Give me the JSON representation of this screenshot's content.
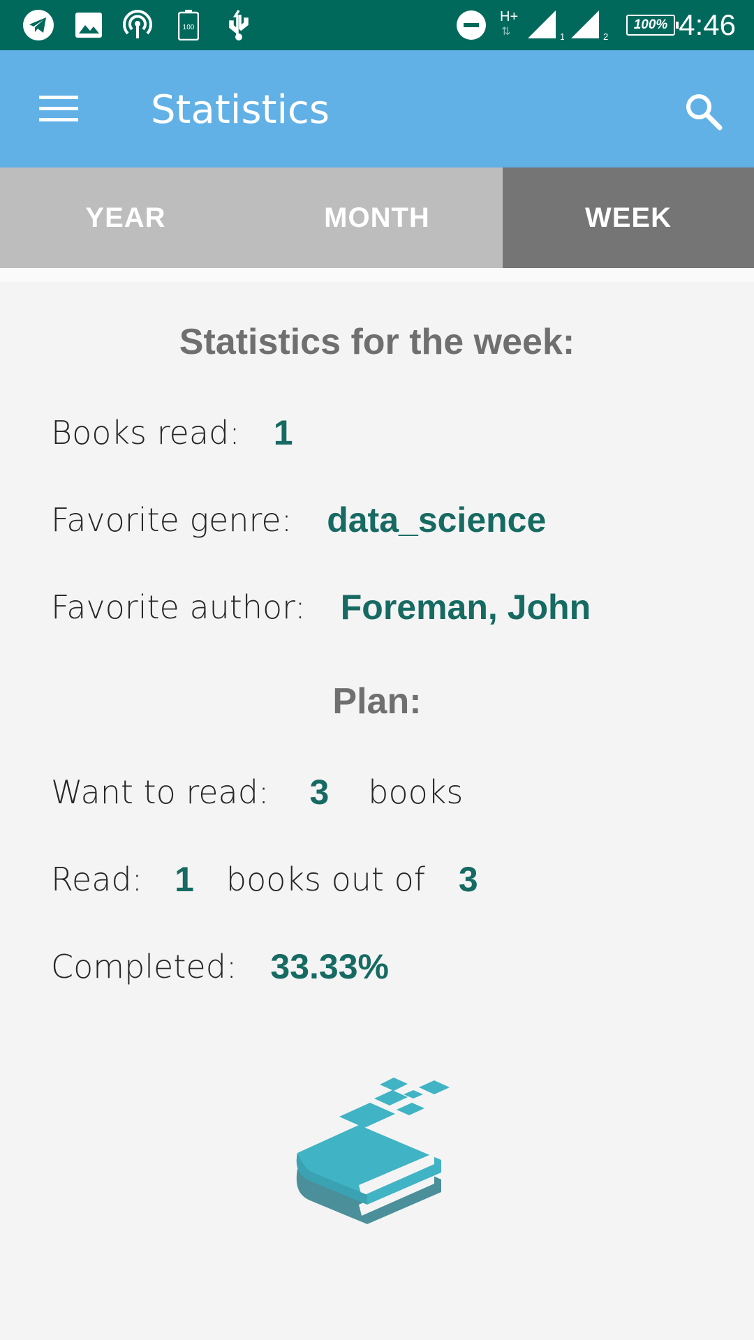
{
  "status_bar": {
    "time": "4:46",
    "battery_text": "100%",
    "network_text": "H+",
    "sim1": "1",
    "sim2": "2",
    "battery_icon_text": "100"
  },
  "app_bar": {
    "title": "Statistics"
  },
  "tabs": [
    {
      "label": "YEAR",
      "active": false
    },
    {
      "label": "MONTH",
      "active": false
    },
    {
      "label": "WEEK",
      "active": true
    }
  ],
  "stats": {
    "heading": "Statistics for the week:",
    "books_read_label": "Books read:",
    "books_read_value": "1",
    "favorite_genre_label": "Favorite genre:",
    "favorite_genre_value": "data_science",
    "favorite_author_label": "Favorite author:",
    "favorite_author_value": "Foreman, John"
  },
  "plan": {
    "heading": "Plan:",
    "want_to_read_label": "Want to read:",
    "want_to_read_value": "3",
    "want_to_read_unit": "books",
    "read_label": "Read:",
    "read_value": "1",
    "read_middle": "books out of",
    "read_total": "3",
    "completed_label": "Completed:",
    "completed_value": "33.33%"
  },
  "colors": {
    "status_bar": "#00695c",
    "app_bar": "#61b1e6",
    "tab_bg": "#bdbdbd",
    "tab_active": "#757575",
    "value_text": "#166a62",
    "logo_primary": "#40b3c4",
    "logo_dark": "#4a8f99"
  },
  "icons": {
    "status_left": [
      "telegram-icon",
      "image-icon",
      "hotspot-icon",
      "battery-saver-icon",
      "usb-icon"
    ],
    "status_right": [
      "do-not-disturb-icon",
      "network-icon",
      "signal-sim1-icon",
      "signal-sim2-icon",
      "battery-icon"
    ],
    "menu": "hamburger-menu-icon",
    "search": "search-icon",
    "logo": "books-logo-icon"
  }
}
